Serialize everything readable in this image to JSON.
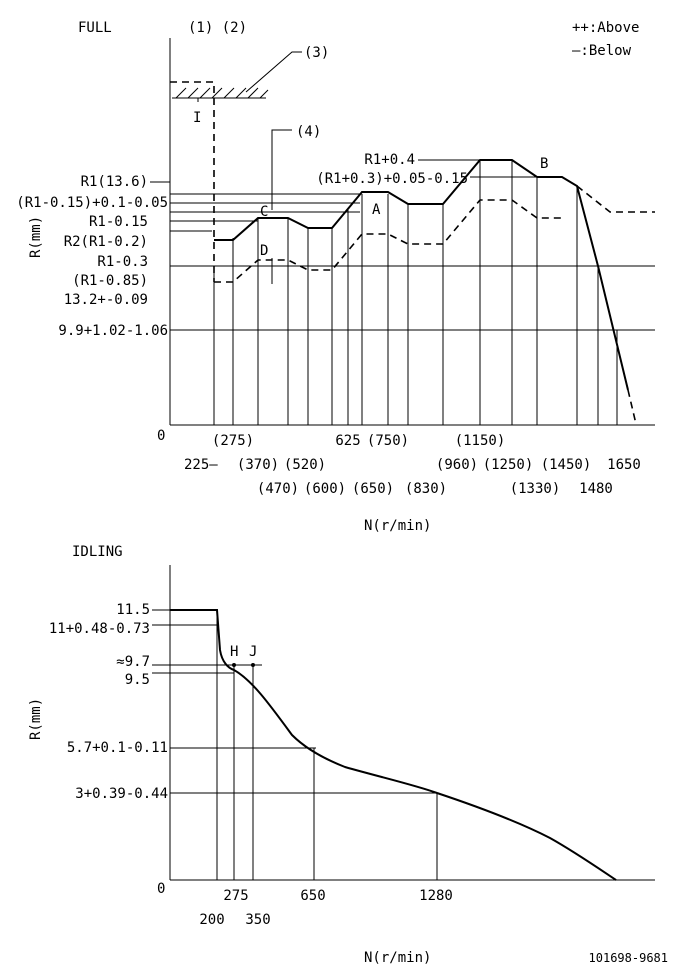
{
  "top": {
    "title": "FULL",
    "notes": "(1) (2)",
    "legend_above": "++:Above",
    "legend_below": "—:Below",
    "callout_3": "(3)",
    "callout_4": "(4)",
    "point_labels": {
      "I": "I",
      "A": "A",
      "B": "B",
      "C": "C",
      "D": "D"
    },
    "y_axis_label": "R(mm)",
    "x_axis_label": "N(r/min)",
    "zero": "0",
    "r_labels": [
      "R1(13.6)",
      "(R1-0.15)+0.1-0.05",
      "R1-0.15",
      "R2(R1-0.2)",
      "R1-0.3",
      "(R1-0.85)",
      "13.2+-0.09",
      "9.9+1.02-1.06"
    ],
    "r_labels_right": [
      "R1+0.4",
      "(R1+0.3)+0.05-0.15"
    ],
    "x_labels_row1": [
      "(275)",
      "625",
      "(750)",
      "(1150)",
      "(1450)"
    ],
    "x_labels_row2": [
      "225—",
      "(370)",
      "(520)",
      "(650)",
      "(960)",
      "(1250)",
      "1650"
    ],
    "x_labels_row3": [
      "(470)",
      "(600)",
      "(830)",
      "(1330)",
      "1480"
    ]
  },
  "bottom": {
    "title": "IDLING",
    "y_axis_label": "R(mm)",
    "x_axis_label": "N(r/min)",
    "zero": "0",
    "r_labels": [
      "11.5",
      "11+0.48-0.73",
      "≈9.7",
      "9.5",
      "5.7+0.1-0.11",
      "3+0.39-0.44"
    ],
    "point_labels": {
      "H": "H",
      "J": "J"
    },
    "x_labels": [
      "200",
      "275",
      "350",
      "650",
      "1280"
    ]
  },
  "doc_code": "101698-9681"
}
